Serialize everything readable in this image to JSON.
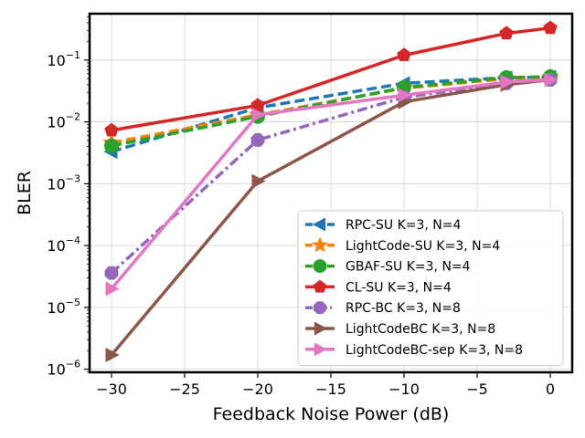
{
  "chart_data": {
    "type": "line",
    "title": "",
    "xlabel": "Feedback Noise Power (dB)",
    "ylabel": "BLER",
    "xlim": [
      -31.5,
      1.5
    ],
    "ylim_log10": [
      -6.05,
      -0.25
    ],
    "yscale": "log",
    "grid": true,
    "legend_position": "lower-right",
    "x_ticks": [
      -30,
      -25,
      -20,
      -15,
      -10,
      -5,
      0
    ],
    "x_tick_labels": [
      "−30",
      "−25",
      "−20",
      "−15",
      "−10",
      "−5",
      "0"
    ],
    "y_ticks": [
      {
        "exp": -6,
        "base": "10",
        "sup": "−6"
      },
      {
        "exp": -5,
        "base": "10",
        "sup": "−5"
      },
      {
        "exp": -4,
        "base": "10",
        "sup": "−4"
      },
      {
        "exp": -3,
        "base": "10",
        "sup": "−3"
      },
      {
        "exp": -2,
        "base": "10",
        "sup": "−2"
      },
      {
        "exp": -1,
        "base": "10",
        "sup": "−1"
      }
    ],
    "series": [
      {
        "name": "RPC-SU K=3, N=4",
        "color": "#1f77b4",
        "dash": "dashed",
        "marker": "triangle-left",
        "x": [
          -30,
          -20,
          -10,
          -3,
          0
        ],
        "y": [
          0.0033,
          0.017,
          0.042,
          0.052,
          0.053
        ]
      },
      {
        "name": "LightCode-SU K=3, N=4",
        "color": "#ff7f0e",
        "dash": "dashed",
        "marker": "star",
        "x": [
          -30,
          -20,
          -10,
          -3,
          0
        ],
        "y": [
          0.0046,
          0.013,
          0.035,
          0.05,
          0.053
        ]
      },
      {
        "name": "GBAF-SU K=3, N=4",
        "color": "#2ca02c",
        "dash": "dashed",
        "marker": "circle",
        "x": [
          -30,
          -20,
          -10,
          -3,
          0
        ],
        "y": [
          0.0041,
          0.0122,
          0.036,
          0.052,
          0.054
        ]
      },
      {
        "name": "CL-SU K=3, N=4",
        "color": "#d62728",
        "dash": "solid",
        "marker": "pentagon",
        "x": [
          -30,
          -20,
          -10,
          -3,
          0
        ],
        "y": [
          0.0073,
          0.0185,
          0.12,
          0.27,
          0.33
        ]
      },
      {
        "name": "RPC-BC K=3, N=8",
        "color": "#9467bd",
        "dash": "dashdot",
        "marker": "octagon",
        "x": [
          -30,
          -20,
          -10,
          -3,
          0
        ],
        "y": [
          3.6e-05,
          0.0051,
          0.025,
          0.042,
          0.048
        ]
      },
      {
        "name": "LightCodeBC K=3, N=8",
        "color": "#8c564b",
        "dash": "solid",
        "marker": "triangle-right",
        "x": [
          -30,
          -20,
          -10,
          -3,
          0
        ],
        "y": [
          1.7e-06,
          0.0011,
          0.021,
          0.04,
          0.048
        ]
      },
      {
        "name": "LightCodeBC-sep K=3, N=8",
        "color": "#e377c2",
        "dash": "solid",
        "marker": "triangle-right",
        "x": [
          -30,
          -20,
          -10,
          -3,
          0
        ],
        "y": [
          2e-05,
          0.013,
          0.027,
          0.044,
          0.048
        ]
      }
    ]
  }
}
